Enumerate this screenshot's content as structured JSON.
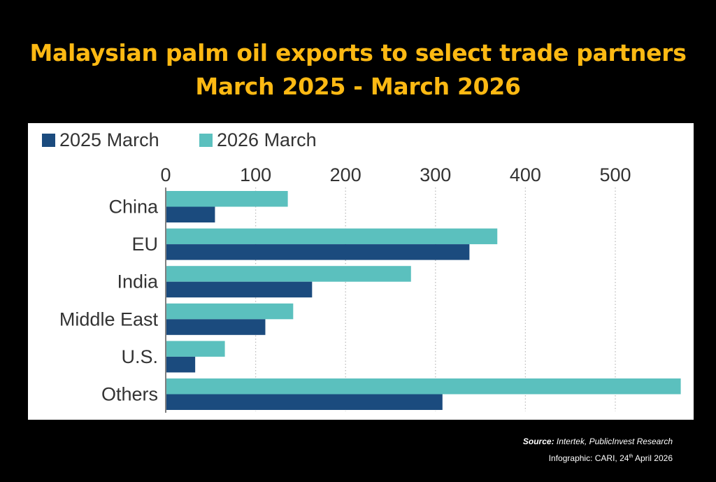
{
  "title": {
    "line1": "Malaysian palm oil exports to select trade partners",
    "line2": "March 2025 - March 2026"
  },
  "footer": {
    "source_label": "Source:",
    "source_text": "Intertek, PublicInvest Research",
    "credit_prefix": "Infographic: CARI, 24",
    "credit_sup": "th",
    "credit_suffix": "April 2026"
  },
  "colors": {
    "title": "#FDB913",
    "series_2025": "#1B4B7E",
    "series_2026": "#5BC0BE",
    "background": "#000000",
    "panel": "#FFFFFF"
  },
  "chart_data": {
    "type": "bar",
    "orientation": "horizontal",
    "categories": [
      "China",
      "EU",
      "India",
      "Middle East",
      "U.S.",
      "Others"
    ],
    "series": [
      {
        "name": "2025 March",
        "values": [
          54,
          337,
          162,
          110,
          32,
          307
        ]
      },
      {
        "name": "2026 March",
        "values": [
          135,
          368,
          272,
          141,
          65,
          572
        ]
      }
    ],
    "xticks": [
      "0",
      "100",
      "200",
      "300",
      "400",
      "500"
    ],
    "xlim": [
      0,
      575
    ],
    "grid": "vertical dotted",
    "legend_position": "top-left",
    "axis_position": "top"
  }
}
